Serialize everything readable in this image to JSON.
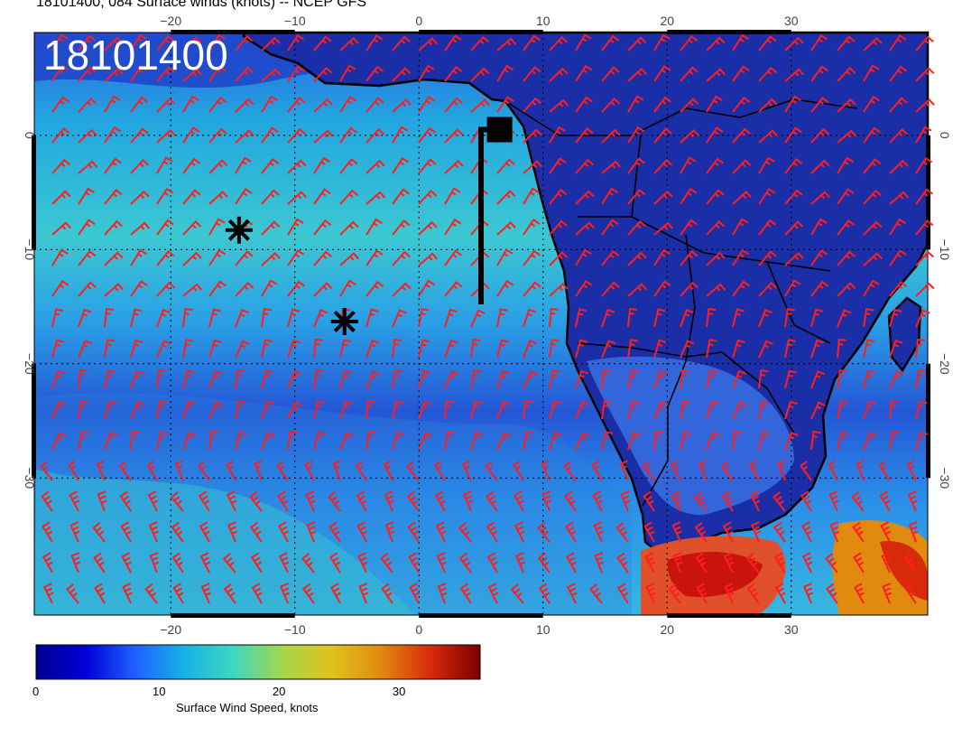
{
  "title": "18101400, 084 Surface winds (knots) -- NCEP GFS",
  "stamp": "18101400",
  "lon_ticks": [
    "−20",
    "−10",
    "0",
    "10",
    "20",
    "30"
  ],
  "lat_ticks": [
    "0",
    "−10",
    "−20",
    "−30"
  ],
  "colorbar": {
    "label": "Surface Wind Speed, knots",
    "ticks": [
      "0",
      "10",
      "20",
      "30"
    ],
    "range": [
      0,
      37
    ],
    "colors": [
      "#00008c",
      "#0000d8",
      "#1f5fff",
      "#17b2e6",
      "#3fd6c0",
      "#a6d64a",
      "#e0c21c",
      "#e08a10",
      "#d82a0a",
      "#7a0000"
    ]
  },
  "markers": [
    {
      "name": "storm-marker",
      "lon": -14.5,
      "lat": -8.3
    },
    {
      "name": "storm-marker",
      "lon": -6,
      "lat": -16.3
    }
  ],
  "track": {
    "lon": [
      5,
      5,
      6.5
    ],
    "lat": [
      -14.8,
      0.5,
      0.5
    ]
  },
  "map_extent": {
    "lon": [
      -31,
      41
    ],
    "lat": [
      -42,
      9
    ]
  }
}
